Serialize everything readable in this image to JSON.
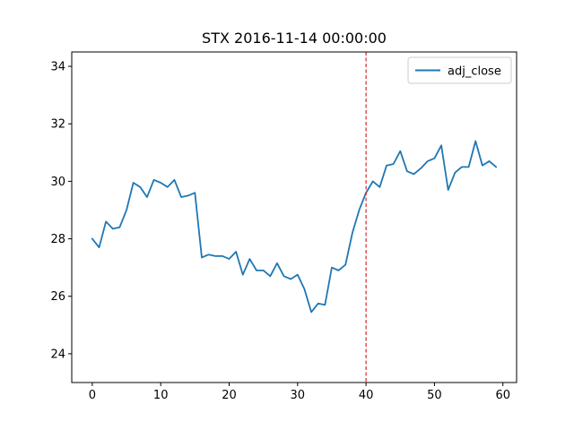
{
  "chart_data": {
    "type": "line",
    "title": "STX 2016-11-14 00:00:00",
    "xlabel": "",
    "ylabel": "",
    "xlim": [
      -3,
      62
    ],
    "ylim": [
      23,
      34.5
    ],
    "xticks": [
      0,
      10,
      20,
      30,
      40,
      50,
      60
    ],
    "yticks": [
      24,
      26,
      28,
      30,
      32,
      34
    ],
    "grid": false,
    "legend_position": "top-right",
    "series": [
      {
        "name": "adj_close",
        "color": "#1f77b4",
        "x": [
          0,
          1,
          2,
          3,
          4,
          5,
          6,
          7,
          8,
          9,
          10,
          11,
          12,
          13,
          14,
          15,
          16,
          17,
          18,
          19,
          20,
          21,
          22,
          23,
          24,
          25,
          26,
          27,
          28,
          29,
          30,
          31,
          32,
          33,
          34,
          35,
          36,
          37,
          38,
          39,
          40,
          41,
          42,
          43,
          44,
          45,
          46,
          47,
          48,
          49,
          50,
          51,
          52,
          53,
          54,
          55,
          56,
          57,
          58,
          59
        ],
        "values": [
          28.0,
          27.7,
          28.6,
          28.35,
          28.4,
          29.0,
          29.95,
          29.8,
          29.45,
          30.05,
          29.95,
          29.8,
          30.05,
          29.45,
          29.5,
          29.6,
          27.35,
          27.45,
          27.4,
          27.4,
          27.3,
          27.55,
          26.75,
          27.3,
          26.9,
          26.9,
          26.7,
          27.15,
          26.7,
          26.6,
          26.75,
          26.25,
          25.45,
          25.75,
          25.7,
          27.0,
          26.9,
          27.1,
          28.2,
          29.0,
          29.6,
          30.0,
          29.8,
          30.55,
          30.6,
          31.05,
          30.35,
          30.25,
          30.45,
          30.7,
          30.8,
          31.25,
          29.7,
          30.3,
          30.5,
          30.5,
          31.4,
          30.55,
          30.7,
          30.5
        ]
      }
    ],
    "annotations": [
      {
        "type": "vline",
        "x": 40,
        "color": "#d62728",
        "style": "dashed"
      }
    ]
  }
}
